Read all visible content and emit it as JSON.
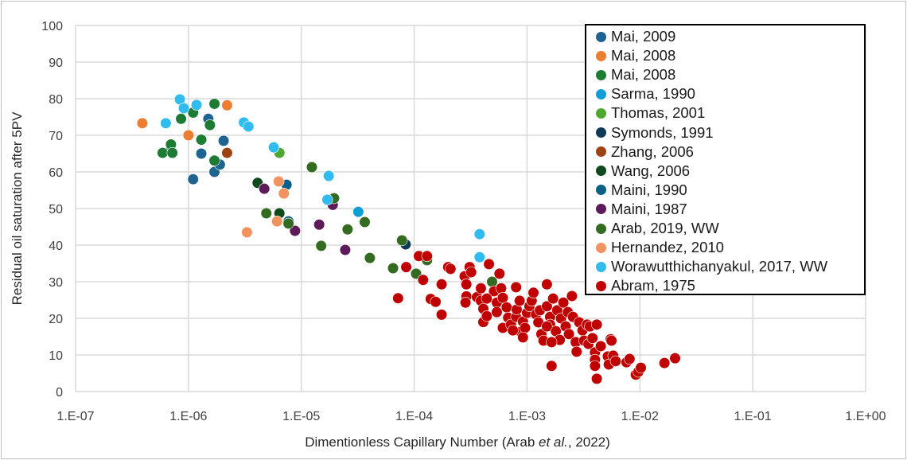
{
  "chart_data": {
    "type": "scatter",
    "title": "",
    "xlabel_parts": {
      "prefix": "Dimentionless Capillary Number (Arab ",
      "italic": "et al.",
      "suffix": ", 2022)"
    },
    "ylabel": "Residual oil saturation after 5PV",
    "x_scale": "log",
    "xlim": [
      1e-07,
      1
    ],
    "ylim": [
      0,
      100
    ],
    "x_ticks": [
      1e-07,
      1e-06,
      1e-05,
      0.0001,
      0.001,
      0.01,
      0.1,
      1
    ],
    "x_tick_labels": [
      "1.E-07",
      "1.E-06",
      "1.E-05",
      "1.E-04",
      "1.E-03",
      "1.E-02",
      "1.E-01",
      "1.E+00"
    ],
    "y_ticks": [
      0,
      10,
      20,
      30,
      40,
      50,
      60,
      70,
      80,
      90,
      100
    ],
    "y_tick_labels": [
      "0",
      "10",
      "20",
      "30",
      "40",
      "50",
      "60",
      "70",
      "80",
      "90",
      "100"
    ],
    "grid": true,
    "legend_placement": "top-right",
    "series": [
      {
        "name": "Mai, 2009",
        "color": "#1f6391",
        "points": [
          [
            1.5e-06,
            74.5
          ],
          [
            1.3e-06,
            65
          ],
          [
            1.1e-06,
            58
          ],
          [
            1.7e-06,
            60
          ],
          [
            1.9e-06,
            62
          ],
          [
            2.05e-06,
            68.5
          ],
          [
            7e-07,
            66
          ]
        ]
      },
      {
        "name": "Mai, 2008",
        "color": "#ed7d31",
        "points": [
          [
            3.9e-07,
            73.3
          ],
          [
            1e-06,
            70
          ],
          [
            2.2e-06,
            78.2
          ]
        ]
      },
      {
        "name": "Mai, 2008",
        "color": "#1e7b34",
        "points": [
          [
            1.7e-06,
            78.6
          ],
          [
            8.6e-07,
            74.5
          ],
          [
            1.1e-06,
            76.2
          ],
          [
            1.55e-06,
            72.8
          ],
          [
            1.3e-06,
            68.8
          ],
          [
            7e-07,
            67.5
          ],
          [
            5.9e-07,
            65.2
          ],
          [
            7.2e-07,
            65.2
          ],
          [
            1.7e-06,
            63.1
          ]
        ]
      },
      {
        "name": "Sarma, 1990",
        "color": "#0f9ed5",
        "points": [
          [
            3.2e-05,
            49.1
          ]
        ]
      },
      {
        "name": "Thomas, 2001",
        "color": "#4ea72e",
        "points": [
          [
            6.4e-06,
            65.2
          ]
        ]
      },
      {
        "name": "Symonds, 1991",
        "color": "#0e3a55",
        "points": [
          [
            8.4e-05,
            40.2
          ]
        ]
      },
      {
        "name": "Zhang, 2006",
        "color": "#9c4213",
        "points": [
          [
            2.2e-06,
            65.2
          ]
        ]
      },
      {
        "name": "Wang, 2006",
        "color": "#0f4a1d",
        "points": [
          [
            4.1e-06,
            57
          ],
          [
            6.4e-06,
            48.7
          ]
        ]
      },
      {
        "name": "Maini, 1990",
        "color": "#0b6185",
        "points": [
          [
            7.4e-06,
            56.5
          ],
          [
            7.7e-06,
            46.5
          ]
        ]
      },
      {
        "name": "Maini, 1987",
        "color": "#5e1b5a",
        "points": [
          [
            4.7e-06,
            55.4
          ],
          [
            1.9e-05,
            51
          ],
          [
            1.44e-05,
            45.6
          ],
          [
            8.8e-06,
            43.9
          ],
          [
            2.45e-05,
            38.7
          ]
        ]
      },
      {
        "name": "Arab, 2019, WW",
        "color": "#336b20",
        "points": [
          [
            1.24e-05,
            61.3
          ],
          [
            1.95e-05,
            52.8
          ],
          [
            4.9e-06,
            48.7
          ],
          [
            7.7e-06,
            45.9
          ],
          [
            1.5e-05,
            39.8
          ],
          [
            2.57e-05,
            44.3
          ],
          [
            3.65e-05,
            46.3
          ],
          [
            4.05e-05,
            36.5
          ],
          [
            6.5e-05,
            33.7
          ],
          [
            7.8e-05,
            41.3
          ],
          [
            0.000104,
            32.2
          ],
          [
            0.00013,
            35.9
          ],
          [
            0.00049,
            30
          ]
        ]
      },
      {
        "name": "Hernandez, 2010",
        "color": "#f1925f",
        "points": [
          [
            6.3e-06,
            57.4
          ],
          [
            7e-06,
            54.1
          ],
          [
            6.1e-06,
            46.5
          ],
          [
            3.3e-06,
            43.5
          ]
        ]
      },
      {
        "name": "Worawutthichanyakul, 2017, WW",
        "color": "#30bcef",
        "points": [
          [
            8.4e-07,
            79.8
          ],
          [
            9.1e-07,
            77.4
          ],
          [
            1.18e-06,
            78.3
          ],
          [
            6.3e-07,
            73.3
          ],
          [
            3.1e-06,
            73.5
          ],
          [
            3.4e-06,
            72.4
          ],
          [
            5.7e-06,
            66.7
          ],
          [
            1.75e-05,
            58.9
          ],
          [
            1.7e-05,
            52.4
          ],
          [
            0.00038,
            43
          ],
          [
            0.00038,
            36.7
          ]
        ]
      },
      {
        "name": "Abram, 1975",
        "color": "#c00000",
        "points": [
          [
            7.2e-05,
            25.5
          ],
          [
            8.5e-05,
            34
          ],
          [
            0.00011,
            37
          ],
          [
            0.00013,
            37
          ],
          [
            0.00012,
            30.5
          ],
          [
            0.00014,
            25.3
          ],
          [
            0.000155,
            24.5
          ],
          [
            0.000175,
            29.3
          ],
          [
            0.000175,
            21
          ],
          [
            0.0002,
            34
          ],
          [
            0.00021,
            33.5
          ],
          [
            0.00028,
            31.5
          ],
          [
            0.00029,
            29.3
          ],
          [
            0.00031,
            34
          ],
          [
            0.00032,
            32.6
          ],
          [
            0.00029,
            26
          ],
          [
            0.000285,
            24.3
          ],
          [
            0.00036,
            25.8
          ],
          [
            0.00039,
            28.2
          ],
          [
            0.00039,
            24.8
          ],
          [
            0.00041,
            22.6
          ],
          [
            0.00041,
            19
          ],
          [
            0.00044,
            20.6
          ],
          [
            0.00046,
            34.8
          ],
          [
            0.00057,
            32.2
          ],
          [
            0.00051,
            27.4
          ],
          [
            0.00054,
            24.3
          ],
          [
            0.00054,
            21.7
          ],
          [
            0.00059,
            28.2
          ],
          [
            0.00061,
            25.6
          ],
          [
            0.00066,
            23
          ],
          [
            0.00068,
            20.2
          ],
          [
            0.00061,
            17.4
          ],
          [
            0.00072,
            18.3
          ],
          [
            0.0008,
            20.4
          ],
          [
            0.00081,
            22.4
          ],
          [
            0.0008,
            28.5
          ],
          [
            0.00086,
            24.8
          ],
          [
            0.00088,
            16.3
          ],
          [
            0.00092,
            19.1
          ],
          [
            0.00096,
            17.4
          ],
          [
            0.001,
            21.5
          ],
          [
            0.00105,
            23.3
          ],
          [
            0.0011,
            24.8
          ],
          [
            0.00114,
            27
          ],
          [
            0.0012,
            21.1
          ],
          [
            0.00126,
            18.9
          ],
          [
            0.0013,
            22.2
          ],
          [
            0.00134,
            15.7
          ],
          [
            0.0014,
            13.9
          ],
          [
            0.0015,
            29.3
          ],
          [
            0.0015,
            23.3
          ],
          [
            0.0016,
            20.4
          ],
          [
            0.0016,
            18.3
          ],
          [
            0.00165,
            7
          ],
          [
            0.0017,
            25.4
          ],
          [
            0.0018,
            16.5
          ],
          [
            0.00185,
            22.2
          ],
          [
            0.00195,
            14.1
          ],
          [
            0.002,
            20
          ],
          [
            0.0021,
            24.3
          ],
          [
            0.0022,
            17.8
          ],
          [
            0.0023,
            21.7
          ],
          [
            0.00235,
            15.7
          ],
          [
            0.0025,
            26.1
          ],
          [
            0.00255,
            20.4
          ],
          [
            0.0027,
            13.5
          ],
          [
            0.00275,
            10.9
          ],
          [
            0.0029,
            18.9
          ],
          [
            0.0031,
            16.7
          ],
          [
            0.0032,
            13.9
          ],
          [
            0.0034,
            18.3
          ],
          [
            0.0035,
            13
          ],
          [
            0.0038,
            14.6
          ],
          [
            0.0036,
            17.8
          ],
          [
            0.004,
            10.7
          ],
          [
            0.00415,
            18.3
          ],
          [
            0.004,
            8.7
          ],
          [
            0.004,
            7
          ],
          [
            0.00415,
            3.5
          ],
          [
            0.0045,
            12.4
          ],
          [
            0.0052,
            9.6
          ],
          [
            0.0053,
            7.4
          ],
          [
            0.0055,
            14.3
          ],
          [
            0.0056,
            13.9
          ],
          [
            0.0058,
            9.8
          ],
          [
            0.0061,
            8.3
          ],
          [
            0.0076,
            8
          ],
          [
            0.0081,
            8.9
          ],
          [
            0.0092,
            4.6
          ],
          [
            0.0097,
            5.4
          ],
          [
            0.0102,
            6.5
          ],
          [
            0.0165,
            7.8
          ],
          [
            0.0205,
            9.1
          ],
          [
            0.0015,
            17.8
          ],
          [
            0.00165,
            13.5
          ],
          [
            0.00092,
            14.8
          ],
          [
            0.00075,
            16.7
          ],
          [
            0.00044,
            25.4
          ]
        ]
      }
    ]
  }
}
